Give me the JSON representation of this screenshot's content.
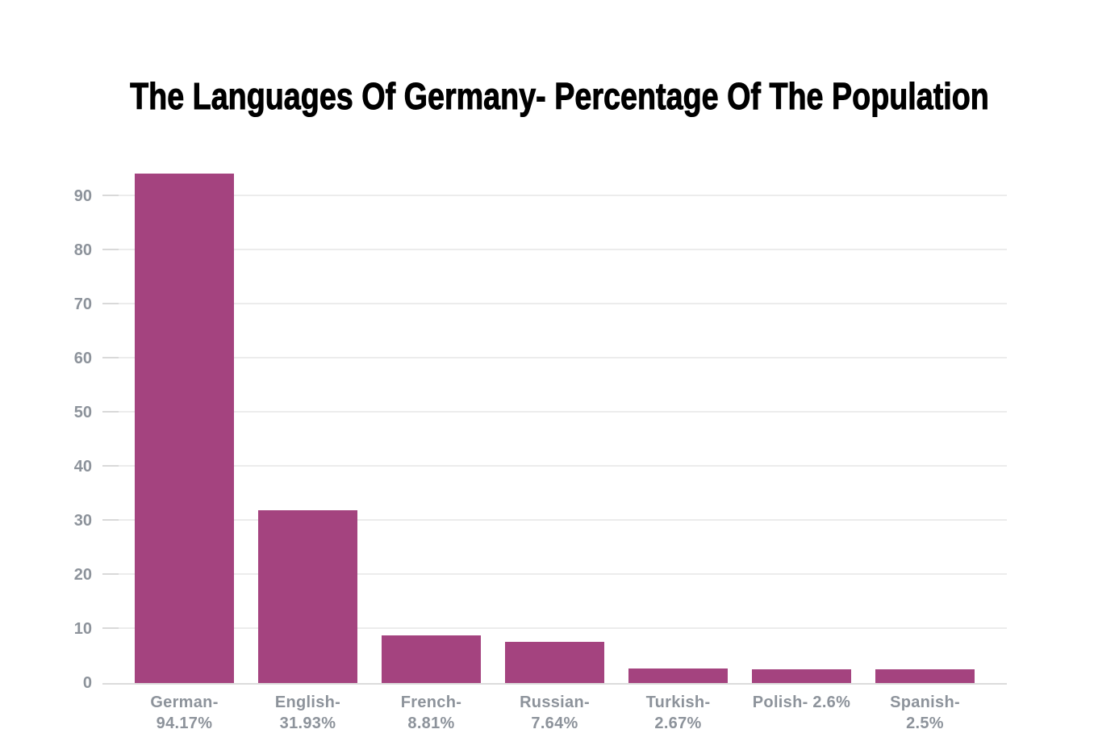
{
  "page": {
    "background": "#ffffff"
  },
  "chart_data": {
    "type": "bar",
    "title": "The Languages Of Germany- Percentage Of The Population",
    "categories": [
      "German",
      "English",
      "French",
      "Russian",
      "Turkish",
      "Polish",
      "Spanish"
    ],
    "values": [
      94.17,
      31.93,
      8.81,
      7.64,
      2.67,
      2.6,
      2.5
    ],
    "points": [
      {
        "category": "German",
        "value": 94.17,
        "label_line1": "German-",
        "label_line2": "94.17%"
      },
      {
        "category": "English",
        "value": 31.93,
        "label_line1": "English-",
        "label_line2": "31.93%"
      },
      {
        "category": "French",
        "value": 8.81,
        "label_line1": "French-",
        "label_line2": "8.81%"
      },
      {
        "category": "Russian",
        "value": 7.64,
        "label_line1": "Russian-",
        "label_line2": "7.64%"
      },
      {
        "category": "Turkish",
        "value": 2.67,
        "label_line1": "Turkish-",
        "label_line2": "2.67%"
      },
      {
        "category": "Polish",
        "value": 2.6,
        "label_line1": "Polish- 2.6%",
        "label_line2": ""
      },
      {
        "category": "Spanish",
        "value": 2.5,
        "label_line1": "Spanish-",
        "label_line2": "2.5%"
      }
    ],
    "yticks": [
      0,
      10,
      20,
      30,
      40,
      50,
      60,
      70,
      80,
      90
    ],
    "ylim": [
      0,
      96
    ],
    "xlabel": "",
    "ylabel": "",
    "grid": "horizontal",
    "legend": "none",
    "colors": {
      "bar": "#a4437f",
      "gridline": "#ececec",
      "tick": "#d9d9d9",
      "baseline": "#dcdcdc",
      "axis_text": "#8d939b",
      "title": "#000000",
      "background": "#ffffff"
    }
  }
}
